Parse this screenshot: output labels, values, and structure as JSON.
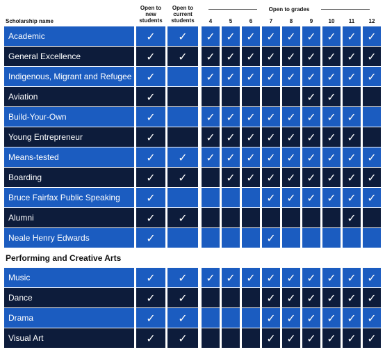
{
  "header": {
    "name": "Scholarship name",
    "new": "Open to new students",
    "current": "Open to current students",
    "grades_label": "Open to grades",
    "grades": [
      4,
      5,
      6,
      7,
      8,
      9,
      10,
      11,
      12
    ]
  },
  "groups": [
    {
      "rows": [
        {
          "name": "Academic",
          "marks": [
            "✓",
            "✓",
            "✓",
            "✓",
            "✓",
            "✓",
            "✓",
            "✓",
            "✓",
            "✓",
            "✓"
          ]
        },
        {
          "name": "General Excellence",
          "marks": [
            "✓",
            "✓",
            "✓",
            "✓",
            "✓",
            "✓",
            "✓",
            "✓",
            "✓",
            "✓",
            "✓"
          ]
        },
        {
          "name": "Indigenous, Migrant and Refugee",
          "marks": [
            "✓",
            null,
            "✓",
            "✓",
            "✓",
            "✓",
            "✓",
            "✓",
            "✓",
            "✓",
            "✓"
          ]
        },
        {
          "name": "Aviation",
          "marks": [
            "✓",
            null,
            null,
            null,
            null,
            null,
            null,
            "✓",
            "✓",
            null,
            null
          ]
        },
        {
          "name": "Build-Your-Own",
          "marks": [
            "✓",
            null,
            "✓",
            "✓",
            "✓",
            "✓",
            "✓",
            "✓",
            "✓",
            "✓",
            null
          ]
        },
        {
          "name": "Young Entrepreneur",
          "marks": [
            "✓",
            null,
            "✓",
            "✓",
            "✓",
            "✓",
            "✓",
            "✓",
            "✓",
            "✓",
            null
          ]
        },
        {
          "name": "Means-tested",
          "marks": [
            "✓",
            "✓",
            "✓",
            "✓",
            "✓",
            "✓",
            "✓",
            "✓",
            "✓",
            "✓",
            "✓"
          ]
        },
        {
          "name": "Boarding",
          "marks": [
            "✓",
            "✓",
            null,
            "✓",
            "✓",
            "✓",
            "✓",
            "✓",
            "✓",
            "✓",
            "✓"
          ]
        },
        {
          "name": "Bruce Fairfax Public Speaking",
          "marks": [
            "✓",
            null,
            null,
            null,
            null,
            "✓",
            "✓",
            "✓",
            "✓",
            "✓",
            "✓"
          ]
        },
        {
          "name": "Alumni",
          "marks": [
            "✓",
            "✓",
            null,
            null,
            null,
            null,
            null,
            null,
            null,
            "✓",
            null
          ]
        },
        {
          "name": "Neale Henry Edwards",
          "marks": [
            "✓",
            null,
            null,
            null,
            null,
            "✓",
            null,
            null,
            null,
            null,
            null
          ]
        }
      ]
    },
    {
      "title": "Performing and Creative Arts",
      "rows": [
        {
          "name": "Music",
          "marks": [
            "✓",
            "✓",
            "✓",
            "✓",
            "✓",
            "✓",
            "✓",
            "✓",
            "✓",
            "✓",
            "✓"
          ]
        },
        {
          "name": "Dance",
          "marks": [
            "✓",
            "✓",
            null,
            null,
            null,
            "✓",
            "✓",
            "✓",
            "✓",
            "✓",
            "✓"
          ]
        },
        {
          "name": "Drama",
          "marks": [
            "✓",
            "✓",
            null,
            null,
            null,
            "✓",
            "✓",
            "✓",
            "✓",
            "✓",
            "✓"
          ]
        },
        {
          "name": "Visual Art",
          "marks": [
            "✓",
            "✓",
            null,
            null,
            null,
            "✓",
            "✓",
            "✓",
            "✓",
            "✓",
            "✓"
          ]
        }
      ]
    }
  ]
}
